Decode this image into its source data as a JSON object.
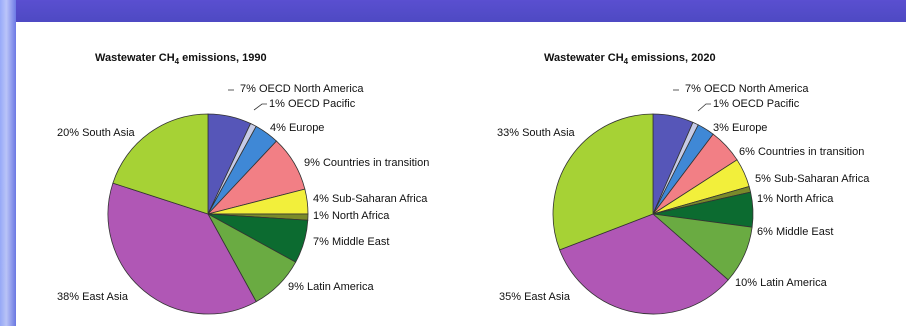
{
  "chart_data": [
    {
      "type": "pie",
      "title": "Wastewater CH",
      "title_sub": "4",
      "title_suffix": " emissions, 1990",
      "slices": [
        {
          "name": "OECD North America",
          "label": "7% OECD North America",
          "value": 7,
          "color": "#5656b8"
        },
        {
          "name": "OECD Pacific",
          "label": "1% OECD Pacific",
          "value": 1,
          "color": "#c6cbe6"
        },
        {
          "name": "Europe",
          "label": "4% Europe",
          "value": 4,
          "color": "#3f88d6"
        },
        {
          "name": "Countries in transition",
          "label": "9% Countries in transition",
          "value": 9,
          "color": "#f27f85"
        },
        {
          "name": "Sub-Saharan Africa",
          "label": "4% Sub-Saharan Africa",
          "value": 4,
          "color": "#f2ef3b"
        },
        {
          "name": "North Africa",
          "label": "1% North Africa",
          "value": 1,
          "color": "#7a8a2a"
        },
        {
          "name": "Middle East",
          "label": "7% Middle East",
          "value": 7,
          "color": "#0c6b30"
        },
        {
          "name": "Latin America",
          "label": "9% Latin America",
          "value": 9,
          "color": "#6aab42"
        },
        {
          "name": "East Asia",
          "label": "38% East Asia",
          "value": 38,
          "color": "#b057b5"
        },
        {
          "name": "South Asia",
          "label": "20% South Asia",
          "value": 20,
          "color": "#a6d235"
        }
      ]
    },
    {
      "type": "pie",
      "title": "Wastewater CH",
      "title_sub": "4",
      "title_suffix": " emissions, 2020",
      "slices": [
        {
          "name": "OECD North America",
          "label": "7% OECD North America",
          "value": 7,
          "color": "#5656b8"
        },
        {
          "name": "OECD Pacific",
          "label": "1% OECD Pacific",
          "value": 1,
          "color": "#c6cbe6"
        },
        {
          "name": "Europe",
          "label": "3% Europe",
          "value": 3,
          "color": "#3f88d6"
        },
        {
          "name": "Countries in transition",
          "label": "6% Countries in transition",
          "value": 6,
          "color": "#f27f85"
        },
        {
          "name": "Sub-Saharan Africa",
          "label": "5% Sub-Saharan Africa",
          "value": 5,
          "color": "#f2ef3b"
        },
        {
          "name": "North Africa",
          "label": "1% North Africa",
          "value": 1,
          "color": "#7a8a2a"
        },
        {
          "name": "Middle East",
          "label": "6% Middle East",
          "value": 6,
          "color": "#0c6b30"
        },
        {
          "name": "Latin America",
          "label": "10% Latin America",
          "value": 10,
          "color": "#6aab42"
        },
        {
          "name": "East Asia",
          "label": "35% East Asia",
          "value": 35,
          "color": "#b057b5"
        },
        {
          "name": "South Asia",
          "label": "33% South Asia",
          "value": 33,
          "color": "#a6d235"
        }
      ]
    }
  ]
}
